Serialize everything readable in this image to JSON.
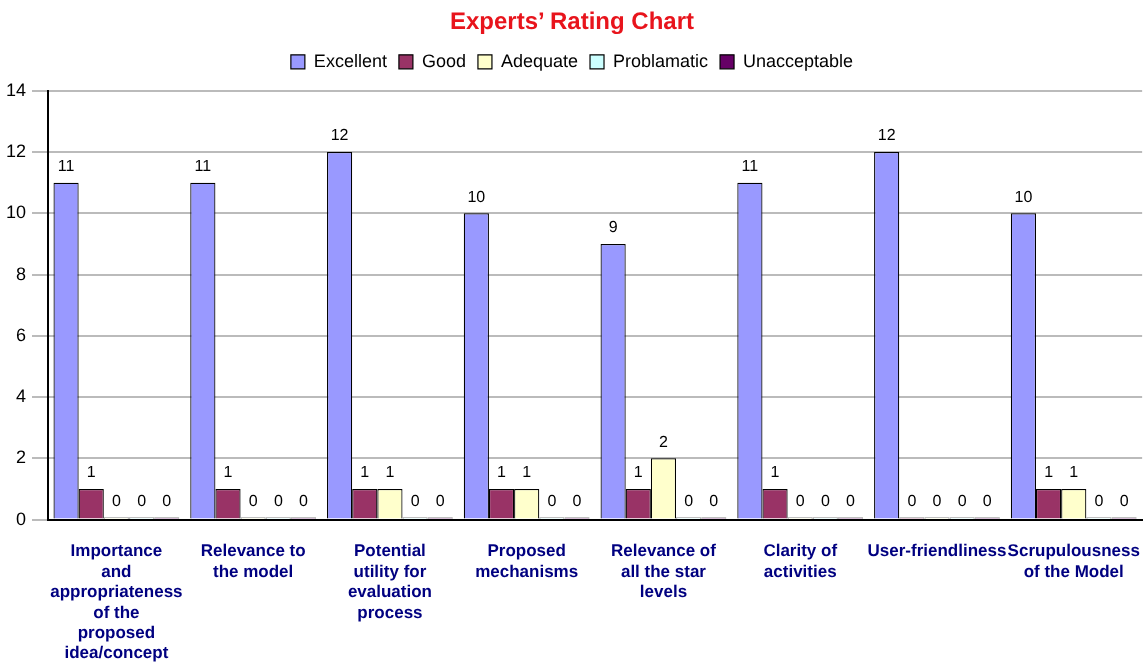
{
  "chart_data": {
    "type": "bar",
    "title": "Experts’ Rating Chart",
    "categories": [
      "Importance and appropriateness of the proposed idea/concept",
      "Relevance to the model",
      "Potential utility for evaluation process",
      "Proposed mechanisms",
      "Relevance of all the star levels",
      "Clarity of activities",
      "User-friendliness",
      "Scrupulousness of the Model"
    ],
    "series": [
      {
        "name": "Excellent",
        "color": "#9999ff",
        "values": [
          11,
          11,
          12,
          10,
          9,
          11,
          12,
          10
        ]
      },
      {
        "name": "Good",
        "color": "#993366",
        "values": [
          1,
          1,
          1,
          1,
          1,
          1,
          0,
          1
        ]
      },
      {
        "name": "Adequate",
        "color": "#ffffcc",
        "values": [
          0,
          0,
          1,
          1,
          2,
          0,
          0,
          1
        ]
      },
      {
        "name": "Problamatic",
        "color": "#ccffff",
        "values": [
          0,
          0,
          0,
          0,
          0,
          0,
          0,
          0
        ]
      },
      {
        "name": "Unacceptable",
        "color": "#660066",
        "values": [
          0,
          0,
          0,
          0,
          0,
          0,
          0,
          0
        ]
      }
    ],
    "ylim": [
      0,
      14
    ],
    "yticks": [
      0,
      2,
      4,
      6,
      8,
      10,
      12,
      14
    ],
    "grid": "y",
    "legend": "top",
    "data_labels": true
  }
}
